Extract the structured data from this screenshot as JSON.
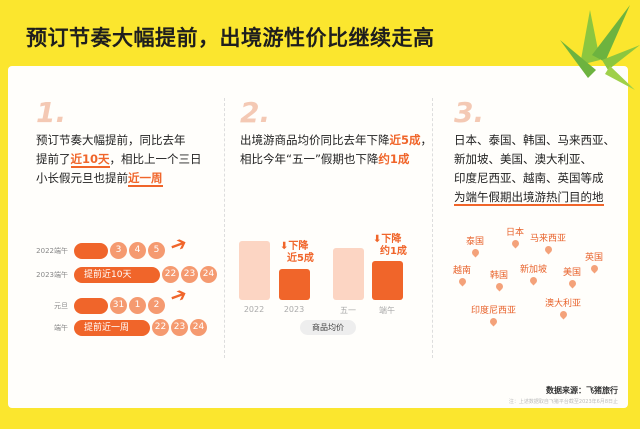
{
  "title": "预订节奏大幅提前，出境游性价比继续走高",
  "col1": {
    "num": "1.",
    "t1": "预订节奏大幅提前，同比去年",
    "t2a": "提前了",
    "t2b": "近10天",
    "t2c": "，相比上一个三日",
    "t3a": "小长假元旦也提前",
    "t3b": "近一周",
    "rows": [
      {
        "label": "2022端午",
        "bar": "",
        "days": [
          "3",
          "4",
          "5"
        ]
      },
      {
        "label": "2023端午",
        "bar": "提前近10天",
        "days": [
          "22",
          "23",
          "24"
        ]
      },
      {
        "label": "元旦",
        "bar": "",
        "days": [
          "31",
          "1",
          "2"
        ]
      },
      {
        "label": "端午",
        "bar": "提前近一周",
        "days": [
          "22",
          "23",
          "24"
        ]
      }
    ]
  },
  "col2": {
    "num": "2.",
    "t1a": "出境游商品均价同比去年下降",
    "t1b": "近5成",
    "t1c": "，",
    "t2a": "相比今年“五一”假期也下降",
    "t2b": "约1成",
    "bars": [
      "2022",
      "2023",
      "五一",
      "端午"
    ],
    "drop1a": "下降",
    "drop1b": "近5成",
    "drop2a": "下降",
    "drop2b": "约1成",
    "pill": "商品均价"
  },
  "col3": {
    "num": "3.",
    "t1": "日本、泰国、韩国、马来西亚、",
    "t2": "新加坡、美国、澳大利亚、",
    "t3": "印度尼西亚、越南、英国等成",
    "t4": "为端午假期出境游热门目的地",
    "cities": [
      "日本",
      "泰国",
      "马来西亚",
      "英国",
      "越南",
      "韩国",
      "新加坡",
      "美国",
      "澳大利亚",
      "印度尼西亚"
    ]
  },
  "source": "数据来源：飞猪旅行",
  "note": "注：上述数据取自飞猪平台截至2023年6月8日止",
  "colors": {
    "accent": "#f0652a",
    "background": "#fbe62e"
  }
}
